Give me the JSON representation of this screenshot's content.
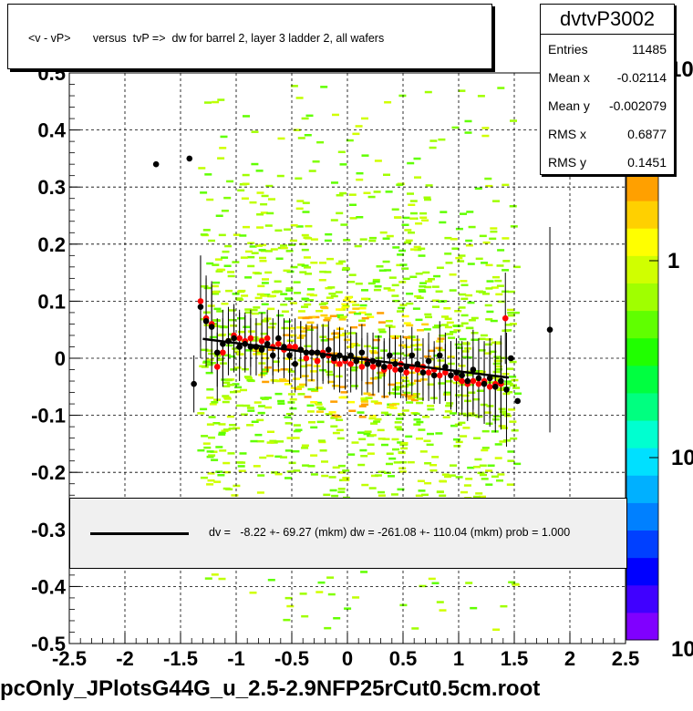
{
  "title": "<v - vP>       versus  tvP =>  dw for barrel 2, layer 3 ladder 2, all wafers",
  "footer": "pcOnly_JPlotsG44G_u_2.5-2.9NFP25rCut0.5cm.root",
  "stats": {
    "name": "dvtvP3002",
    "rows": [
      {
        "key": "Entries",
        "value": "11485"
      },
      {
        "key": "Mean x",
        "value": "-0.02114"
      },
      {
        "key": "Mean y",
        "value": "-0.002079"
      },
      {
        "key": "RMS x",
        "value": "0.6877"
      },
      {
        "key": "RMS y",
        "value": "0.1451"
      }
    ]
  },
  "legend": {
    "text": "dv =   -8.22 +- 69.27 (mkm) dw = -261.08 +- 110.04 (mkm) prob = 1.000"
  },
  "colorbar": {
    "labels": [
      "10",
      "1",
      "10"
    ],
    "palette": [
      "#8000ff",
      "#4000ff",
      "#0000ff",
      "#0040ff",
      "#0080ff",
      "#00b0ff",
      "#00e0ff",
      "#00ffd0",
      "#00ff80",
      "#00ff40",
      "#20ff00",
      "#60ff00",
      "#a0ff00",
      "#d0ff00",
      "#ffff00",
      "#ffd000",
      "#ffa000"
    ]
  },
  "chart_data": {
    "type": "scatter",
    "xlim": [
      -2.5,
      2.5
    ],
    "ylim": [
      -0.5,
      0.5
    ],
    "x_ticks": [
      "-2.5",
      "-2",
      "-1.5",
      "-1",
      "-0.5",
      "0",
      "0.5",
      "1",
      "1.5",
      "2",
      "2.5"
    ],
    "y_ticks": [
      "-0.5",
      "-0.4",
      "-0.3",
      "-0.2",
      "-0.1",
      "0",
      "0.1",
      "0.2",
      "0.3",
      "0.4",
      "0.5"
    ],
    "grid": true,
    "fit_line": {
      "x": [
        -1.3,
        1.45
      ],
      "y": [
        0.034,
        -0.034
      ]
    },
    "series": [
      {
        "color": "#000000",
        "points": [
          {
            "x": -1.72,
            "y": 0.34,
            "err": 0
          },
          {
            "x": -1.42,
            "y": 0.35,
            "err": 0
          },
          {
            "x": -1.38,
            "y": -0.045,
            "err": 0.05
          },
          {
            "x": -1.32,
            "y": 0.09,
            "err": 0.09
          },
          {
            "x": -1.27,
            "y": 0.065,
            "err": 0.08
          },
          {
            "x": -1.22,
            "y": 0.055,
            "err": 0.08
          },
          {
            "x": -1.17,
            "y": 0.01,
            "err": 0.06
          },
          {
            "x": -1.12,
            "y": 0.025,
            "err": 0.06
          },
          {
            "x": -1.07,
            "y": 0.03,
            "err": 0.06
          },
          {
            "x": -1.02,
            "y": 0.035,
            "err": 0.06
          },
          {
            "x": -0.97,
            "y": 0.02,
            "err": 0.06
          },
          {
            "x": -0.92,
            "y": 0.025,
            "err": 0.05
          },
          {
            "x": -0.87,
            "y": 0.02,
            "err": 0.05
          },
          {
            "x": -0.82,
            "y": 0.02,
            "err": 0.05
          },
          {
            "x": -0.77,
            "y": 0.015,
            "err": 0.05
          },
          {
            "x": -0.72,
            "y": 0.025,
            "err": 0.05
          },
          {
            "x": -0.67,
            "y": 0.005,
            "err": 0.05
          },
          {
            "x": -0.62,
            "y": 0.035,
            "err": 0.05
          },
          {
            "x": -0.57,
            "y": 0.02,
            "err": 0.05
          },
          {
            "x": -0.52,
            "y": 0.005,
            "err": 0.05
          },
          {
            "x": -0.47,
            "y": -0.01,
            "err": 0.05
          },
          {
            "x": -0.42,
            "y": 0.015,
            "err": 0.05
          },
          {
            "x": -0.37,
            "y": 0.01,
            "err": 0.05
          },
          {
            "x": -0.32,
            "y": 0.01,
            "err": 0.05
          },
          {
            "x": -0.27,
            "y": 0.01,
            "err": 0.05
          },
          {
            "x": -0.22,
            "y": 0.005,
            "err": 0.05
          },
          {
            "x": -0.17,
            "y": 0.015,
            "err": 0.05
          },
          {
            "x": -0.12,
            "y": 0.0,
            "err": 0.05
          },
          {
            "x": -0.07,
            "y": 0.005,
            "err": 0.05
          },
          {
            "x": -0.02,
            "y": 0.0,
            "err": 0.05
          },
          {
            "x": 0.03,
            "y": 0.005,
            "err": 0.05
          },
          {
            "x": 0.08,
            "y": -0.005,
            "err": 0.05
          },
          {
            "x": 0.13,
            "y": 0.01,
            "err": 0.05
          },
          {
            "x": 0.18,
            "y": -0.01,
            "err": 0.05
          },
          {
            "x": 0.23,
            "y": -0.005,
            "err": 0.05
          },
          {
            "x": 0.28,
            "y": -0.01,
            "err": 0.05
          },
          {
            "x": 0.33,
            "y": -0.015,
            "err": 0.05
          },
          {
            "x": 0.38,
            "y": 0.005,
            "err": 0.05
          },
          {
            "x": 0.43,
            "y": -0.01,
            "err": 0.05
          },
          {
            "x": 0.48,
            "y": -0.02,
            "err": 0.05
          },
          {
            "x": 0.53,
            "y": -0.015,
            "err": 0.05
          },
          {
            "x": 0.58,
            "y": 0.005,
            "err": 0.05
          },
          {
            "x": 0.63,
            "y": -0.01,
            "err": 0.05
          },
          {
            "x": 0.68,
            "y": -0.025,
            "err": 0.05
          },
          {
            "x": 0.73,
            "y": -0.005,
            "err": 0.05
          },
          {
            "x": 0.78,
            "y": -0.03,
            "err": 0.05
          },
          {
            "x": 0.83,
            "y": 0.005,
            "err": 0.06
          },
          {
            "x": 0.88,
            "y": -0.015,
            "err": 0.06
          },
          {
            "x": 0.93,
            "y": -0.03,
            "err": 0.06
          },
          {
            "x": 0.98,
            "y": -0.025,
            "err": 0.06
          },
          {
            "x": 1.03,
            "y": -0.03,
            "err": 0.06
          },
          {
            "x": 1.08,
            "y": -0.04,
            "err": 0.07
          },
          {
            "x": 1.13,
            "y": -0.02,
            "err": 0.07
          },
          {
            "x": 1.18,
            "y": -0.035,
            "err": 0.07
          },
          {
            "x": 1.23,
            "y": -0.045,
            "err": 0.07
          },
          {
            "x": 1.28,
            "y": -0.035,
            "err": 0.07
          },
          {
            "x": 1.33,
            "y": -0.05,
            "err": 0.08
          },
          {
            "x": 1.38,
            "y": -0.04,
            "err": 0.08
          },
          {
            "x": 1.43,
            "y": -0.055,
            "err": 0.1
          },
          {
            "x": 1.47,
            "y": 0.0,
            "err": 0.0
          },
          {
            "x": 1.53,
            "y": -0.075,
            "err": 0.0
          },
          {
            "x": 1.82,
            "y": 0.05,
            "err": 0.18
          }
        ]
      },
      {
        "color": "#ff0000",
        "points": [
          {
            "x": -1.32,
            "y": 0.1,
            "err": 0.08
          },
          {
            "x": -1.27,
            "y": 0.07,
            "err": 0.07
          },
          {
            "x": -1.22,
            "y": 0.06,
            "err": 0.07
          },
          {
            "x": -1.17,
            "y": -0.015,
            "err": 0.06
          },
          {
            "x": -1.12,
            "y": 0.01,
            "err": 0.06
          },
          {
            "x": -1.07,
            "y": 0.03,
            "err": 0.05
          },
          {
            "x": -1.02,
            "y": 0.04,
            "err": 0.05
          },
          {
            "x": -0.97,
            "y": 0.035,
            "err": 0.05
          },
          {
            "x": -0.92,
            "y": 0.03,
            "err": 0.05
          },
          {
            "x": -0.87,
            "y": 0.035,
            "err": 0.05
          },
          {
            "x": -0.82,
            "y": 0.02,
            "err": 0.05
          },
          {
            "x": -0.77,
            "y": 0.03,
            "err": 0.05
          },
          {
            "x": -0.72,
            "y": 0.035,
            "err": 0.05
          },
          {
            "x": -0.67,
            "y": 0.02,
            "err": 0.05
          },
          {
            "x": -0.62,
            "y": 0.025,
            "err": 0.05
          },
          {
            "x": -0.57,
            "y": 0.015,
            "err": 0.05
          },
          {
            "x": -0.52,
            "y": 0.02,
            "err": 0.05
          },
          {
            "x": -0.47,
            "y": 0.02,
            "err": 0.05
          },
          {
            "x": -0.42,
            "y": 0.015,
            "err": 0.05
          },
          {
            "x": -0.37,
            "y": 0.0,
            "err": 0.05
          },
          {
            "x": -0.32,
            "y": 0.01,
            "err": 0.05
          },
          {
            "x": -0.27,
            "y": -0.005,
            "err": 0.05
          },
          {
            "x": -0.22,
            "y": 0.01,
            "err": 0.05
          },
          {
            "x": -0.17,
            "y": 0.005,
            "err": 0.05
          },
          {
            "x": -0.12,
            "y": -0.005,
            "err": 0.05
          },
          {
            "x": -0.07,
            "y": -0.01,
            "err": 0.05
          },
          {
            "x": -0.02,
            "y": -0.005,
            "err": 0.05
          },
          {
            "x": 0.03,
            "y": -0.01,
            "err": 0.05
          },
          {
            "x": 0.08,
            "y": -0.005,
            "err": 0.05
          },
          {
            "x": 0.13,
            "y": -0.015,
            "err": 0.05
          },
          {
            "x": 0.18,
            "y": -0.005,
            "err": 0.05
          },
          {
            "x": 0.23,
            "y": -0.015,
            "err": 0.05
          },
          {
            "x": 0.28,
            "y": -0.01,
            "err": 0.05
          },
          {
            "x": 0.33,
            "y": -0.02,
            "err": 0.05
          },
          {
            "x": 0.38,
            "y": -0.015,
            "err": 0.05
          },
          {
            "x": 0.43,
            "y": -0.02,
            "err": 0.05
          },
          {
            "x": 0.48,
            "y": -0.01,
            "err": 0.05
          },
          {
            "x": 0.53,
            "y": -0.025,
            "err": 0.05
          },
          {
            "x": 0.58,
            "y": -0.015,
            "err": 0.05
          },
          {
            "x": 0.63,
            "y": -0.02,
            "err": 0.05
          },
          {
            "x": 0.68,
            "y": -0.015,
            "err": 0.05
          },
          {
            "x": 0.73,
            "y": -0.025,
            "err": 0.05
          },
          {
            "x": 0.78,
            "y": -0.02,
            "err": 0.05
          },
          {
            "x": 0.83,
            "y": -0.03,
            "err": 0.05
          },
          {
            "x": 0.88,
            "y": -0.025,
            "err": 0.05
          },
          {
            "x": 0.93,
            "y": -0.03,
            "err": 0.06
          },
          {
            "x": 0.98,
            "y": -0.035,
            "err": 0.06
          },
          {
            "x": 1.03,
            "y": -0.04,
            "err": 0.06
          },
          {
            "x": 1.08,
            "y": -0.045,
            "err": 0.06
          },
          {
            "x": 1.13,
            "y": -0.04,
            "err": 0.06
          },
          {
            "x": 1.18,
            "y": -0.045,
            "err": 0.06
          },
          {
            "x": 1.23,
            "y": -0.04,
            "err": 0.07
          },
          {
            "x": 1.28,
            "y": -0.05,
            "err": 0.07
          },
          {
            "x": 1.33,
            "y": -0.045,
            "err": 0.07
          },
          {
            "x": 1.38,
            "y": -0.045,
            "err": 0.08
          },
          {
            "x": 1.42,
            "y": 0.07,
            "err": 0.08
          }
        ]
      }
    ]
  }
}
